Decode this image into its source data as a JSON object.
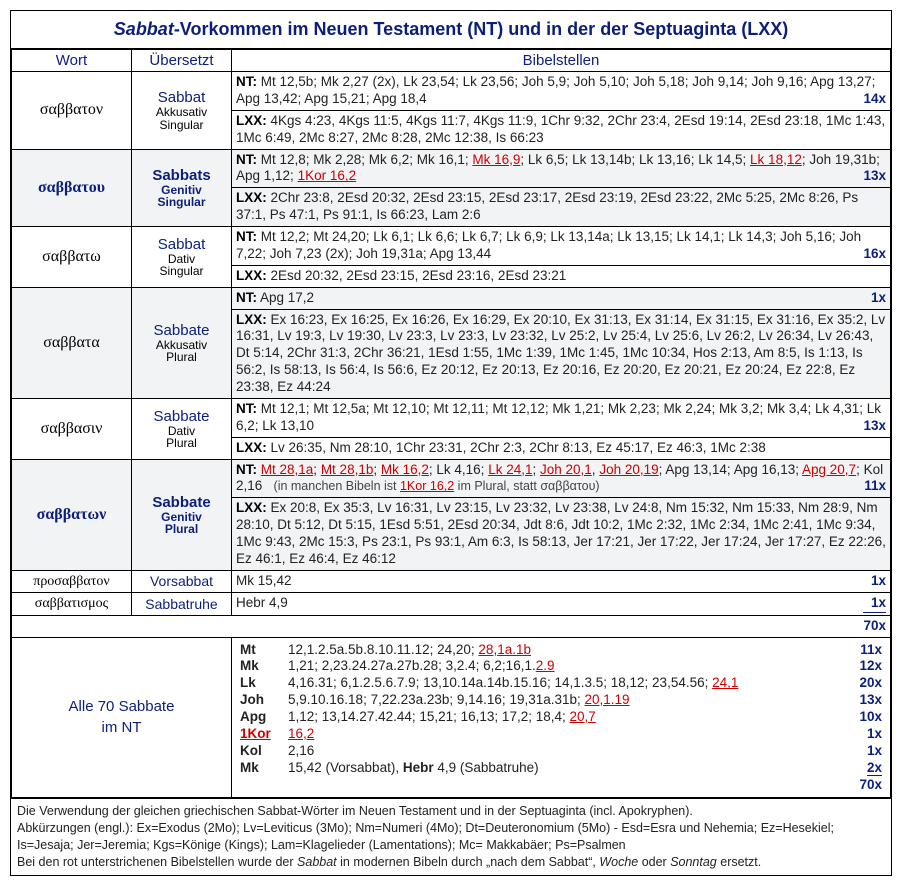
{
  "title_prefix": "Sabbat",
  "title_rest": "-Vorkommen im Neuen Testament (NT) und in der der Septuaginta (LXX)",
  "headers": {
    "wort": "Wort",
    "uebersetzt": "Übersetzt",
    "bibelstellen": "Bibelstellen"
  },
  "rows": [
    {
      "greek": "σαββατον",
      "greek_bold": false,
      "shade": false,
      "trans_head": "Sabbat",
      "trans_head_bold": false,
      "trans_sub1": "Akkusativ",
      "trans_sub2": "Singular",
      "sub_blue": false,
      "nt": "Mt 12,5b; Mk 2,27 (2x), Lk 23,54; Lk 23,56; Joh 5,9; Joh 5,10; Joh 5,18; Joh 9,14; Joh 9,16; Apg 13,27; Apg 13,42; Apg 15,21; Apg 18,4",
      "nt_count": "14x",
      "lxx": "4Kgs 4:23, 4Kgs 11:5, 4Kgs 11:7, 4Kgs 11:9, 1Chr 9:32, 2Chr 23:4, 2Esd 19:14, 2Esd 23:18, 1Mc 1:43, 1Mc 6:49, 2Mc 8:27, 2Mc 8:28, 2Mc 12:38, Is 66:23"
    },
    {
      "greek": "σαββατου",
      "greek_bold": true,
      "shade": true,
      "trans_head": "Sabbats",
      "trans_head_bold": true,
      "trans_sub1": "Genitiv",
      "trans_sub2": "Singular",
      "sub_blue": true,
      "nt_html": "Mt 12,8; Mk 2,28; Mk 6,2; Mk 16,1; <span class='red'>Mk 16,9</span>; Lk 6,5; Lk 13,14b; Lk 13,16; Lk 14,5; <span class='red'>Lk 18,12</span>; Joh 19,31b; Apg 1,12; <span class='red'>1Kor 16,2</span>",
      "nt_count": "13x",
      "lxx": "2Chr 23:8, 2Esd 20:32, 2Esd 23:15, 2Esd 23:17, 2Esd 23:19, 2Esd 23:22, 2Mc 5:25, 2Mc 8:26, Ps 37:1, Ps 47:1, Ps 91:1, Is 66:23, Lam 2:6"
    },
    {
      "greek": "σαββατω",
      "greek_bold": false,
      "shade": false,
      "trans_head": "Sabbat",
      "trans_head_bold": false,
      "trans_sub1": "Dativ",
      "trans_sub2": "Singular",
      "sub_blue": false,
      "nt": "Mt 12,2; Mt 24,20; Lk 6,1; Lk 6,6; Lk 6,7; Lk 6,9; Lk 13,14a; Lk 13,15; Lk 14,1; Lk 14,3; Joh 5,16; Joh 7,22; Joh 7,23 (2x); Joh 19,31a; Apg 13,44",
      "nt_count": "16x",
      "lxx": "2Esd 20:32, 2Esd 23:15, 2Esd 23:16, 2Esd 23:21"
    },
    {
      "greek": "σαββατα",
      "greek_bold": false,
      "shade": true,
      "trans_head": "Sabbate",
      "trans_head_bold": false,
      "trans_sub1": "Akkusativ",
      "trans_sub2": "Plural",
      "sub_blue": false,
      "nt": "Apg 17,2",
      "nt_count": "1x",
      "lxx": "Ex 16:23, Ex 16:25, Ex 16:26, Ex 16:29, Ex 20:10, Ex 31:13, Ex 31:14, Ex 31:15, Ex 31:16, Ex 35:2, Lv 16:31, Lv 19:3, Lv 19:30, Lv 23:3, Lv 23:3, Lv 23:32, Lv 25:2, Lv 25:4, Lv 25:6, Lv 26:2, Lv 26:34, Lv 26:43, Dt 5:14, 2Chr 31:3, 2Chr 36:21, 1Esd 1:55, 1Mc 1:39, 1Mc 1:45, 1Mc 10:34, Hos 2:13, Am 8:5, Is 1:13, Is 56:2, Is 58:13, Is 56:4, Is 56:6, Ez 20:12, Ez 20:13, Ez 20:16, Ez 20:20, Ez 20:21, Ez 20:24, Ez 22:8, Ez 23:38, Ez 44:24"
    },
    {
      "greek": "σαββασιν",
      "greek_bold": false,
      "shade": false,
      "trans_head": "Sabbate",
      "trans_head_bold": false,
      "trans_sub1": "Dativ",
      "trans_sub2": "Plural",
      "sub_blue": false,
      "nt": "Mt 12,1; Mt 12,5a; Mt 12,10; Mt 12,11; Mt 12,12; Mk 1,21; Mk 2,23; Mk 2,24; Mk 3,2; Mk 3,4; Lk 4,31; Lk 6,2; Lk 13,10",
      "nt_count": "13x",
      "lxx": "Lv 26:35, Nm 28:10, 1Chr 23:31, 2Chr 2:3, 2Chr 8:13, Ez 45:17, Ez 46:3, 1Mc 2:38"
    },
    {
      "greek": "σαββατων",
      "greek_bold": true,
      "shade": true,
      "trans_head": "Sabbate",
      "trans_head_bold": true,
      "trans_sub1": "Genitiv",
      "trans_sub2": "Plural",
      "sub_blue": true,
      "nt_html": "<span class='red'>Mt 28,1a</span>; <span class='red'>Mt 28,1b</span>; <span class='red'>Mk 16,2</span>; Lk 4,16; <span class='red'>Lk 24,1</span>; <span class='red'>Joh 20,1</span>, <span class='red'>Joh 20,19</span>; Apg 13,14; Apg 16,13; <span class='red'>Apg 20,7</span>; Kol 2,16 &nbsp;&nbsp;<span class='note'>(in manchen Bibeln ist <span class='red'>1Kor 16,2</span> im Plural, statt σαββατου)</span>",
      "nt_count": "11x",
      "lxx": "Ex 20:8, Ex 35:3, Lv 16:31, Lv 23:15, Lv 23:32, Lv 23:38, Lv 24:8, Nm 15:32, Nm 15:33, Nm 28:9, Nm 28:10, Dt 5:12, Dt 5:15, 1Esd 5:51, 2Esd 20:34, Jdt 8:6, Jdt 10:2, 1Mc 2:32, 1Mc 2:34, 1Mc 2:41, 1Mc 9:34, 1Mc 9:43, 2Mc 15:3, Ps 23:1, Ps 93:1, Am 6:3, Is 58:13, Jer 17:21, Jer 17:22, Jer 17:24, Jer 17:27, Ez 22:26, Ez 46:1, Ez 46:4, Ez 46:12"
    }
  ],
  "simple_rows": [
    {
      "greek": "προσαββατον",
      "trans": "Vorsabbat",
      "refs": "Mk 15,42",
      "count": "1x",
      "underline": false
    },
    {
      "greek": "σαββατισμος",
      "trans": "Sabbatruhe",
      "refs": "Hebr 4,9",
      "count": "1x",
      "underline": true
    }
  ],
  "total_top": "70x",
  "alle70_label1": "Alle 70 Sabbate",
  "alle70_label2": "im NT",
  "books": [
    {
      "bk": "Mt",
      "refs_html": "12,1.2.5a.5b.8.10.11.12; 24,20; <span class='red'>28,1a.1b</span>",
      "ct": "11x"
    },
    {
      "bk": "Mk",
      "refs_html": "1,21; 2,23.24.27a.27b.28; 3,2.4; 6,2;16,1.<span class='red'>2.9</span>",
      "ct": "12x"
    },
    {
      "bk": "Lk",
      "refs_html": "4,16.31; 6,1.2.5.6.7.9; 13,10.14a.14b.15.16; 14,1.3.5; 18,12; 23,54.56; <span class='red'>24,1</span>",
      "ct": "20x"
    },
    {
      "bk": "Joh",
      "refs_html": "5,9.10.16.18; 7,22.23a.23b; 9,14.16; 19,31a.31b; <span class='red'>20,1.19</span>",
      "ct": "13x"
    },
    {
      "bk": "Apg",
      "refs_html": "1,12; 13,14.27.42.44; 15,21; 16,13; 17,2; 18,4; <span class='red'>20,7</span>",
      "ct": "10x"
    },
    {
      "bk_html": "<span class='red'>1Kor</span>",
      "refs_html": "<span class='red'>16,2</span>",
      "ct": "1x"
    },
    {
      "bk": "Kol",
      "refs_html": "2,16",
      "ct": "1x"
    },
    {
      "bk": "Mk",
      "refs_html": "15,42 (Vorsabbat), <b>Hebr</b> 4,9 (Sabbatruhe)",
      "ct": "2x",
      "underline": true
    }
  ],
  "total_bottom": "70x",
  "footer_lines": [
    "Die Verwendung der gleichen griechischen Sabbat-Wörter im Neuen Testament und in der Septuaginta (incl. Apokryphen).",
    "Abkürzungen (engl.): Ex=Exodus (2Mo); Lv=Leviticus (3Mo); Nm=Numeri (4Mo); Dt=Deuteronomium (5Mo) - Esd=Esra und Nehemia; Ez=Hesekiel; Is=Jesaja; Jer=Jeremia; Kgs=Könige (Kings); Lam=Klagelieder (Lamentations); Mc= Makkabäer; Ps=Psalmen",
    "Bei den rot unterstrichenen Bibelstellen wurde der <i>Sabbat</i> in modernen Bibeln durch „nach dem Sabbat“, <i>Woche</i> oder <i>Sonntag</i> ersetzt."
  ]
}
